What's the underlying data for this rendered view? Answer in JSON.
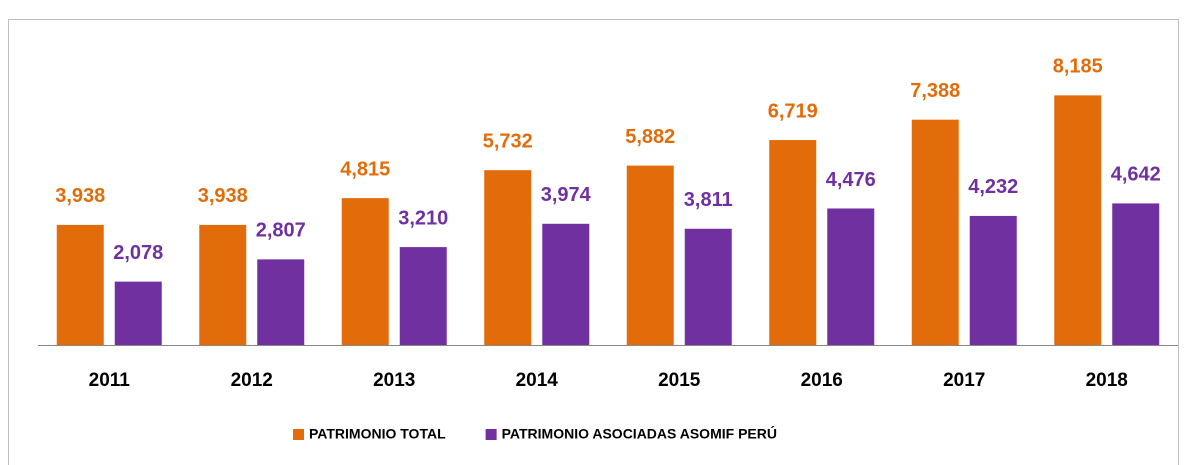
{
  "chart_data": {
    "type": "bar",
    "categories": [
      "2011",
      "2012",
      "2013",
      "2014",
      "2015",
      "2016",
      "2017",
      "2018"
    ],
    "series": [
      {
        "name": "PATRIMONIO TOTAL",
        "color": "#e36c0a",
        "values": [
          3938,
          3938,
          4815,
          5732,
          5882,
          6719,
          7388,
          8185
        ],
        "value_labels": [
          "3,938",
          "3,938",
          "4,815",
          "5,732",
          "5,882",
          "6,719",
          "7,388",
          "8,185"
        ]
      },
      {
        "name": "PATRIMONIO ASOCIADAS ASOMIF PERÚ",
        "color": "#7030a0",
        "values": [
          2078,
          2807,
          3210,
          3974,
          3811,
          4476,
          4232,
          4642
        ],
        "value_labels": [
          "2,078",
          "2,807",
          "3,210",
          "3,974",
          "3,811",
          "4,476",
          "4,232",
          "4,642"
        ]
      }
    ],
    "ylim": [
      0,
      10000
    ],
    "legend": "bottom"
  }
}
